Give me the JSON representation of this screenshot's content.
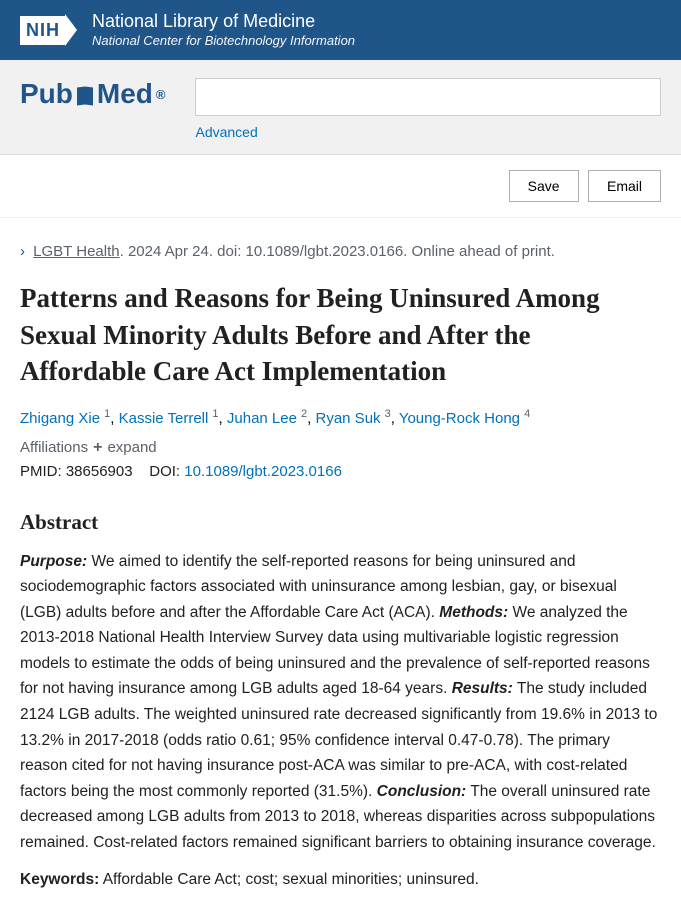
{
  "header": {
    "nih_logo": "NIH",
    "title": "National Library of Medicine",
    "subtitle": "National Center for Biotechnology Information"
  },
  "search": {
    "logo_pub": "Pub",
    "logo_med": "Med",
    "reg": "®",
    "placeholder": "",
    "advanced": "Advanced"
  },
  "actions": {
    "save": "Save",
    "email": "Email"
  },
  "citation": {
    "journal": "LGBT Health",
    "date": ". 2024 Apr 24. doi: 10.1089/lgbt.2023.0166. Online ahead of print."
  },
  "article": {
    "title": "Patterns and Reasons for Being Uninsured Among Sexual Minority Adults Before and After the Affordable Care Act Implementation"
  },
  "authors": [
    {
      "name": "Zhigang Xie",
      "aff": "1"
    },
    {
      "name": "Kassie Terrell",
      "aff": "1"
    },
    {
      "name": "Juhan Lee",
      "aff": "2"
    },
    {
      "name": "Ryan Suk",
      "aff": "3"
    },
    {
      "name": "Young-Rock Hong",
      "aff": "4"
    }
  ],
  "affiliations": {
    "label": "Affiliations",
    "expand": "expand"
  },
  "ids": {
    "pmid_label": "PMID:",
    "pmid": "38656903",
    "doi_label": "DOI:",
    "doi": "10.1089/lgbt.2023.0166"
  },
  "abstract": {
    "heading": "Abstract",
    "purpose_label": "Purpose:",
    "purpose": " We aimed to identify the self-reported reasons for being uninsured and sociodemographic factors associated with uninsurance among lesbian, gay, or bisexual (LGB) adults before and after the Affordable Care Act (ACA). ",
    "methods_label": "Methods:",
    "methods": " We analyzed the 2013-2018 National Health Interview Survey data using multivariable logistic regression models to estimate the odds of being uninsured and the prevalence of self-reported reasons for not having insurance among LGB adults aged 18-64 years. ",
    "results_label": "Results:",
    "results": " The study included 2124 LGB adults. The weighted uninsured rate decreased significantly from 19.6% in 2013 to 13.2% in 2017-2018 (odds ratio 0.61; 95% confidence interval 0.47-0.78). The primary reason cited for not having insurance post-ACA was similar to pre-ACA, with cost-related factors being the most commonly reported (31.5%). ",
    "conclusion_label": "Conclusion:",
    "conclusion": " The overall uninsured rate decreased among LGB adults from 2013 to 2018, whereas disparities across subpopulations remained. Cost-related factors remained significant barriers to obtaining insurance coverage.",
    "keywords_label": "Keywords:",
    "keywords": " Affordable Care Act; cost; sexual minorities; uninsured."
  }
}
